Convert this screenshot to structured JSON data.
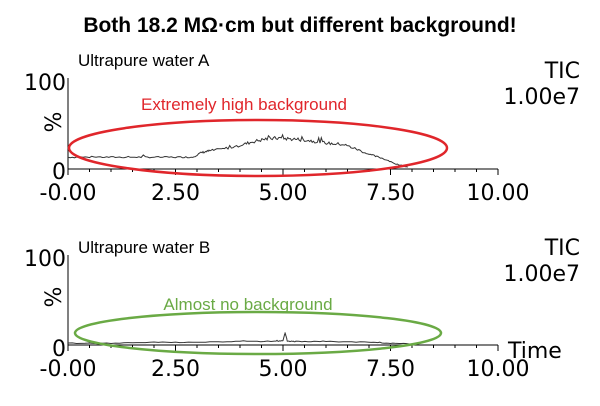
{
  "title": "Both 18.2 MΩ·cm but different background!",
  "chart_data": [
    {
      "type": "line",
      "panel_label": "Ultrapure water A",
      "ylabel": "%",
      "y_ticks": [
        "0",
        "100"
      ],
      "x_ticks": [
        "-0.00",
        "2.50",
        "5.00",
        "7.50",
        "10.00"
      ],
      "xlim": [
        0,
        10
      ],
      "ylim": [
        0,
        100
      ],
      "xlabel": "",
      "intensity_label": "TIC",
      "intensity_value": "1.00e7",
      "annotation": {
        "text": "Extremely high background",
        "color": "#e0262b"
      },
      "series": [
        {
          "x": [
            0.0,
            0.5,
            1.0,
            1.5,
            2.0,
            2.5,
            2.9,
            3.1,
            3.3,
            3.6,
            4.0,
            4.3,
            4.6,
            4.9,
            5.2,
            5.5,
            5.8,
            6.1,
            6.4,
            6.7,
            7.0,
            7.3,
            7.6,
            7.9
          ],
          "y": [
            13,
            13,
            13,
            13,
            13,
            13,
            13,
            18,
            20,
            22,
            26,
            30,
            33,
            34,
            33,
            32,
            30,
            28,
            27,
            22,
            16,
            12,
            6,
            2
          ]
        }
      ]
    },
    {
      "type": "line",
      "panel_label": "Ultrapure water B",
      "ylabel": "%",
      "y_ticks": [
        "0",
        "100"
      ],
      "x_ticks": [
        "-0.00",
        "2.50",
        "5.00",
        "7.50",
        "10.00"
      ],
      "xlim": [
        0,
        10
      ],
      "ylim": [
        0,
        100
      ],
      "xlabel": "Time",
      "intensity_label": "TIC",
      "intensity_value": "1.00e7",
      "annotation": {
        "text": "Almost no background",
        "color": "#6aaa45"
      },
      "series": [
        {
          "x": [
            0.0,
            1.0,
            2.0,
            3.0,
            4.0,
            4.8,
            5.0,
            5.05,
            5.1,
            5.3,
            6.0,
            7.0,
            7.5,
            8.0
          ],
          "y": [
            2,
            2,
            3,
            3,
            4,
            4,
            5,
            14,
            4,
            4,
            4,
            3,
            2,
            1
          ]
        }
      ]
    }
  ]
}
